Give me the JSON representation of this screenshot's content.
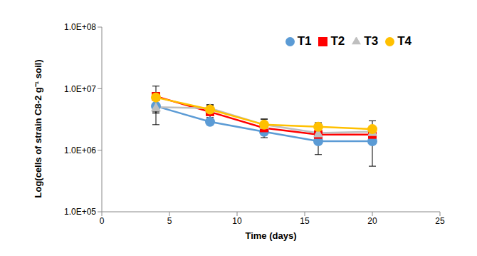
{
  "chart_data": {
    "type": "line",
    "x_label": "Time (days)",
    "y_label": "Log(cells  of strain C8-2 g⁻¹ soil)",
    "x": [
      4,
      8,
      12,
      16,
      20
    ],
    "series": [
      {
        "name": "T1",
        "color": "#5B9BD5",
        "marker": "circle",
        "values": [
          5200000,
          2900000,
          2000000,
          1400000,
          1400000
        ],
        "errors": [
          2600000,
          300000,
          400000,
          550000,
          850000
        ]
      },
      {
        "name": "T2",
        "color": "#FF0000",
        "marker": "square",
        "values": [
          7500000,
          4200000,
          2300000,
          1800000,
          1800000
        ],
        "errors": [
          3500000,
          800000,
          500000,
          300000,
          500000
        ]
      },
      {
        "name": "T3",
        "color": "#BFBFBF",
        "marker": "triangle",
        "values": [
          5000000,
          4800000,
          2600000,
          1900000,
          2000000
        ],
        "errors": [
          800000,
          600000,
          600000,
          300000,
          400000
        ]
      },
      {
        "name": "T4",
        "color": "#FFC000",
        "marker": "circle",
        "values": [
          7200000,
          4600000,
          2600000,
          2400000,
          2200000
        ],
        "errors": [
          1500000,
          900000,
          600000,
          400000,
          800000
        ]
      }
    ],
    "xlim": [
      0,
      25
    ],
    "xticks": [
      0,
      5,
      10,
      15,
      20,
      25
    ],
    "ylim": [
      100000,
      100000000
    ],
    "yticks": [
      {
        "value": 100000,
        "label": "1.0E+05"
      },
      {
        "value": 1000000,
        "label": "1.0E+06"
      },
      {
        "value": 10000000,
        "label": "1.0E+07"
      },
      {
        "value": 100000000,
        "label": "1.0E+08"
      }
    ],
    "log": "y",
    "grid": false,
    "legend": "top right"
  }
}
